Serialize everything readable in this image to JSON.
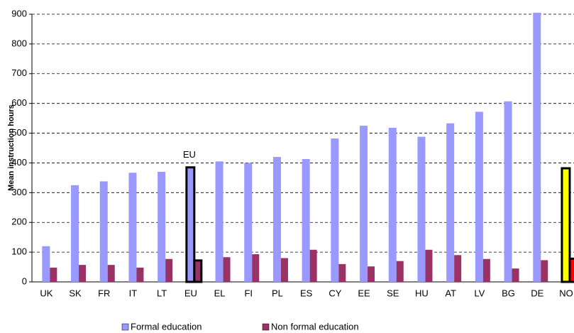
{
  "chart_data": {
    "type": "bar",
    "ylabel": "Mean instruction hours",
    "categories": [
      "UK",
      "SK",
      "FR",
      "IT",
      "LT",
      "EU",
      "EL",
      "FI",
      "PL",
      "ES",
      "CY",
      "EE",
      "SE",
      "HU",
      "AT",
      "LV",
      "BG",
      "DE",
      "NO"
    ],
    "series": [
      {
        "name": "Formal education",
        "color": "#9999ff",
        "values": [
          120,
          325,
          338,
          367,
          370,
          385,
          405,
          400,
          420,
          413,
          482,
          525,
          518,
          488,
          533,
          572,
          607,
          905,
          382
        ],
        "point_colors": [
          "#9999ff",
          "#9999ff",
          "#9999ff",
          "#9999ff",
          "#9999ff",
          "#9999ff",
          "#9999ff",
          "#9999ff",
          "#9999ff",
          "#9999ff",
          "#9999ff",
          "#9999ff",
          "#9999ff",
          "#9999ff",
          "#9999ff",
          "#9999ff",
          "#9999ff",
          "#9999ff",
          "#ffff00"
        ]
      },
      {
        "name": "Non formal education",
        "color": "#993366",
        "values": [
          48,
          57,
          57,
          48,
          77,
          72,
          83,
          93,
          80,
          108,
          60,
          52,
          70,
          108,
          90,
          77,
          45,
          73,
          78
        ],
        "point_colors": [
          "#993366",
          "#993366",
          "#993366",
          "#993366",
          "#993366",
          "#993366",
          "#993366",
          "#993366",
          "#993366",
          "#993366",
          "#993366",
          "#993366",
          "#993366",
          "#993366",
          "#993366",
          "#993366",
          "#993366",
          "#993366",
          "#ff0000"
        ]
      }
    ],
    "outline_indices": [
      5,
      18
    ],
    "annotations": [
      {
        "text": "EU",
        "index": 5
      }
    ],
    "ylim": [
      0,
      900
    ],
    "yticks": [
      0,
      100,
      200,
      300,
      400,
      500,
      600,
      700,
      800,
      900
    ],
    "grid": true,
    "legend": "bottom"
  }
}
